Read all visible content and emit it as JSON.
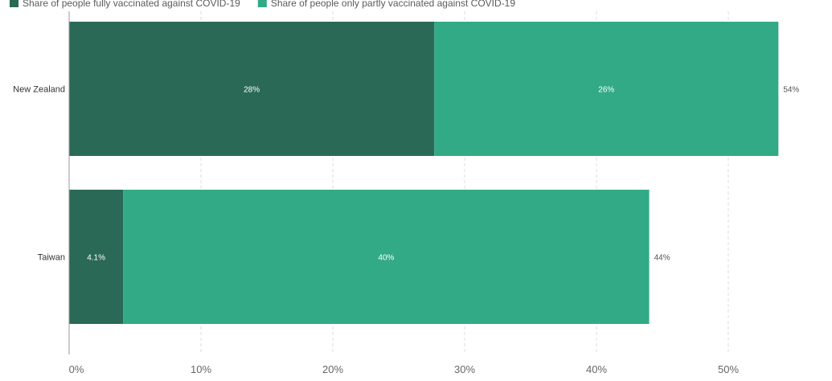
{
  "chart_data": {
    "type": "bar",
    "orientation": "horizontal",
    "stacked": true,
    "categories": [
      "New Zealand",
      "Taiwan"
    ],
    "series": [
      {
        "name": "Share of people fully vaccinated against COVID-19",
        "color": "#2a6955",
        "values": [
          27.7,
          4.1
        ],
        "value_labels": [
          "28%",
          "4.1%"
        ]
      },
      {
        "name": "Share of people only partly vaccinated against COVID-19",
        "color": "#32aa86",
        "values": [
          26.1,
          39.9
        ],
        "value_labels": [
          "26%",
          "40%"
        ]
      }
    ],
    "totals": [
      53.8,
      44.0
    ],
    "total_labels": [
      "54%",
      "44%"
    ],
    "xticks": [
      0,
      10,
      20,
      30,
      40,
      50
    ],
    "xtick_labels": [
      "0%",
      "10%",
      "20%",
      "30%",
      "40%",
      "50%"
    ],
    "xlim": [
      0,
      54.5
    ],
    "grid": "vertical-dashed",
    "legend_position": "top-left"
  }
}
